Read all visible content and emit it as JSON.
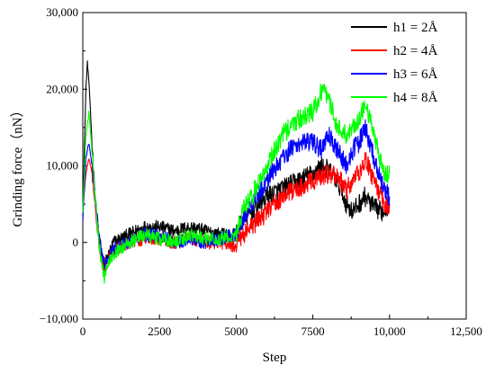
{
  "chart_data": {
    "type": "line",
    "title": "",
    "xlabel": "Step",
    "ylabel": "Grinding force（nN）",
    "xlim": [
      0,
      12500
    ],
    "ylim": [
      -10000,
      30000
    ],
    "x_ticks": [
      0,
      2500,
      5000,
      7500,
      10000,
      12500
    ],
    "x_tick_labels": [
      "0",
      "2500",
      "5000",
      "7500",
      "10,000",
      "12,500"
    ],
    "y_ticks": [
      -10000,
      0,
      10000,
      20000,
      30000
    ],
    "y_tick_labels": [
      "−10,000",
      "0",
      "10,000",
      "20,000",
      "30,000"
    ],
    "grid": false,
    "legend_position": "top-right",
    "series": [
      {
        "name": "h1 = 2Å",
        "color": "#000000",
        "x": [
          0,
          50,
          100,
          150,
          200,
          300,
          400,
          500,
          600,
          700,
          800,
          1000,
          1500,
          2000,
          2500,
          3000,
          3500,
          4000,
          4500,
          5000,
          5200,
          5500,
          6000,
          6500,
          7000,
          7500,
          7800,
          8000,
          8300,
          8600,
          8800,
          9000,
          9200,
          9500,
          9800,
          10000
        ],
        "y": [
          3000,
          12000,
          20000,
          23500,
          21000,
          13000,
          6000,
          1500,
          -1000,
          -3000,
          -2000,
          0,
          1000,
          2000,
          2000,
          1500,
          2000,
          1500,
          1000,
          1000,
          3000,
          4000,
          6000,
          7000,
          8000,
          9000,
          10000,
          9500,
          8000,
          5000,
          4000,
          5000,
          6000,
          4500,
          4000,
          5000
        ]
      },
      {
        "name": "h2 = 4Å",
        "color": "#ff0000",
        "x": [
          0,
          100,
          200,
          300,
          400,
          500,
          600,
          700,
          800,
          1000,
          1500,
          2000,
          2500,
          3000,
          3500,
          4000,
          4500,
          5000,
          5200,
          5500,
          6000,
          6500,
          7000,
          7500,
          7800,
          8000,
          8300,
          8600,
          8800,
          9000,
          9200,
          9500,
          9800,
          10000
        ],
        "y": [
          4000,
          9000,
          11000,
          9000,
          5000,
          1000,
          -2000,
          -3500,
          -2500,
          -1000,
          0,
          500,
          500,
          0,
          500,
          0,
          0,
          -500,
          1000,
          2000,
          4000,
          6000,
          7000,
          8000,
          8500,
          9000,
          8500,
          7000,
          8000,
          9000,
          11000,
          8000,
          5000,
          5000
        ]
      },
      {
        "name": "h3 = 6Å",
        "color": "#0000ff",
        "x": [
          0,
          100,
          200,
          300,
          400,
          500,
          600,
          700,
          800,
          1000,
          1500,
          2000,
          2500,
          3000,
          3500,
          4000,
          4500,
          5000,
          5200,
          5500,
          6000,
          6500,
          7000,
          7500,
          7800,
          8000,
          8300,
          8600,
          8800,
          9000,
          9200,
          9500,
          9800,
          10000
        ],
        "y": [
          3000,
          11000,
          13000,
          10000,
          6000,
          2000,
          -1000,
          -3000,
          -2500,
          -1000,
          0,
          1000,
          1000,
          0,
          500,
          0,
          500,
          1000,
          3000,
          5000,
          8000,
          11000,
          13000,
          13000,
          12000,
          14000,
          12000,
          10000,
          12000,
          13000,
          15000,
          11000,
          7000,
          6000
        ]
      },
      {
        "name": "h4 = 8Å",
        "color": "#00ff00",
        "x": [
          0,
          100,
          200,
          300,
          400,
          500,
          600,
          700,
          800,
          1000,
          1500,
          2000,
          2500,
          3000,
          3500,
          4000,
          4500,
          5000,
          5200,
          5500,
          6000,
          6500,
          7000,
          7500,
          7800,
          8000,
          8300,
          8600,
          8800,
          9000,
          9200,
          9500,
          9800,
          10000
        ],
        "y": [
          4000,
          14000,
          17000,
          12000,
          6000,
          1000,
          -2500,
          -4500,
          -3000,
          -1500,
          0,
          1000,
          500,
          0,
          1000,
          500,
          500,
          1000,
          4000,
          6000,
          10000,
          14000,
          16000,
          17000,
          20000,
          19000,
          15000,
          14000,
          15000,
          16000,
          18000,
          14000,
          9000,
          9000
        ]
      }
    ]
  }
}
